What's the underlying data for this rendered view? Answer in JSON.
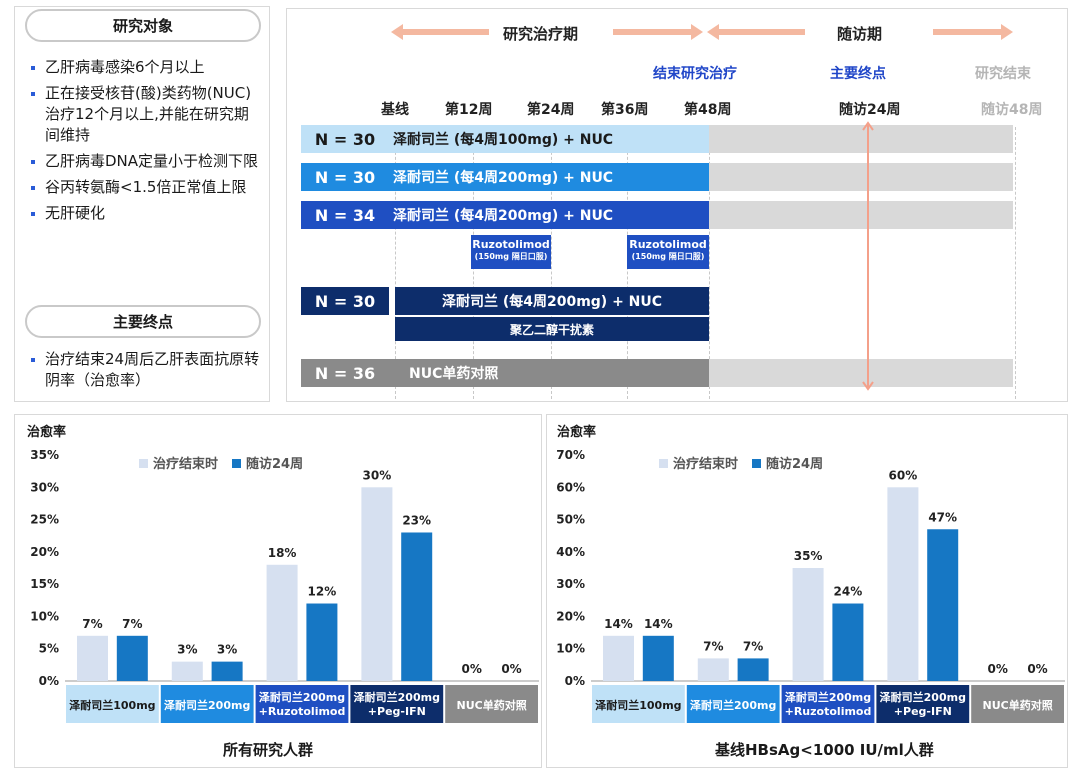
{
  "left": {
    "subjects_title": "研究对象",
    "criteria": [
      "乙肝病毒感染6个月以上",
      "正在接受核苷(酸)类药物(NUC)治疗12个月以上,并能在研究期间维持",
      "乙肝病毒DNA定量小于检测下限",
      "谷丙转氨酶<1.5倍正常值上限",
      "无肝硬化"
    ],
    "endpoint_title": "主要终点",
    "endpoints": [
      "治疗结束24周后乙肝表面抗原转阴率（治愈率）"
    ]
  },
  "timeline": {
    "phase_treatment": "研究治疗期",
    "phase_followup": "随访期",
    "milestones": {
      "end_treatment": "结束研究治疗",
      "primary_endpoint": "主要终点",
      "study_end": "研究结束"
    },
    "ticks": [
      "基线",
      "第12周",
      "第24周",
      "第36周",
      "第48周",
      "随访24周",
      "随访48周"
    ],
    "arms": [
      {
        "n": "N = 30",
        "label": "泽耐司兰 (每4周100mg) + NUC"
      },
      {
        "n": "N = 30",
        "label": "泽耐司兰 (每4周200mg) + NUC"
      },
      {
        "n": "N = 34",
        "label": "泽耐司兰 (每4周200mg) + NUC"
      },
      {
        "n": "N = 30",
        "label": "泽耐司兰 (每4周200mg) + NUC"
      },
      {
        "n": "N = 36",
        "label": "NUC单药对照"
      }
    ],
    "ruzo_label": "Ruzotolimod",
    "ruzo_dose": "(150mg 隔日口服)",
    "peg_label": "聚乙二醇干扰素",
    "colors": {
      "light": "#bfe1f7",
      "mid": "#1f8be0",
      "dark": "#1f4fc2",
      "navy": "#0d2d6b",
      "grey": "#8a8a8a",
      "arrow": "#f4b8a0"
    }
  },
  "charts": {
    "ylabel": "治愈率",
    "legend": [
      "治疗结束时",
      "随访24周"
    ],
    "series_colors": [
      "#d6e0f0",
      "#1677c4"
    ]
  },
  "chart_data": [
    {
      "type": "bar",
      "title": "所有研究人群",
      "ylabel": "治愈率",
      "ylim": [
        0,
        35
      ],
      "yticks": [
        "0%",
        "5%",
        "10%",
        "15%",
        "20%",
        "25%",
        "30%",
        "35%"
      ],
      "categories": [
        "泽耐司兰100mg",
        "泽耐司兰200mg",
        "泽耐司兰200mg +Ruzotolimod",
        "泽耐司兰200mg +Peg-IFN",
        "NUC单药对照"
      ],
      "series": [
        {
          "name": "治疗结束时",
          "values": [
            7,
            3,
            18,
            30,
            0
          ],
          "labels": [
            "7%",
            "3%",
            "18%",
            "30%",
            "0%"
          ]
        },
        {
          "name": "随访24周",
          "values": [
            7,
            3,
            12,
            23,
            0
          ],
          "labels": [
            "7%",
            "3%",
            "12%",
            "23%",
            "0%"
          ]
        }
      ]
    },
    {
      "type": "bar",
      "title": "基线HBsAg<1000 IU/ml人群",
      "ylabel": "治愈率",
      "ylim": [
        0,
        70
      ],
      "yticks": [
        "0%",
        "10%",
        "20%",
        "30%",
        "40%",
        "50%",
        "60%",
        "70%"
      ],
      "categories": [
        "泽耐司兰100mg",
        "泽耐司兰200mg",
        "泽耐司兰200mg +Ruzotolimod",
        "泽耐司兰200mg +Peg-IFN",
        "NUC单药对照"
      ],
      "series": [
        {
          "name": "治疗结束时",
          "values": [
            14,
            7,
            35,
            60,
            0
          ],
          "labels": [
            "14%",
            "7%",
            "35%",
            "60%",
            "0%"
          ]
        },
        {
          "name": "随访24周",
          "values": [
            14,
            7,
            24,
            47,
            0
          ],
          "labels": [
            "14%",
            "7%",
            "24%",
            "47%",
            "0%"
          ]
        }
      ]
    }
  ]
}
